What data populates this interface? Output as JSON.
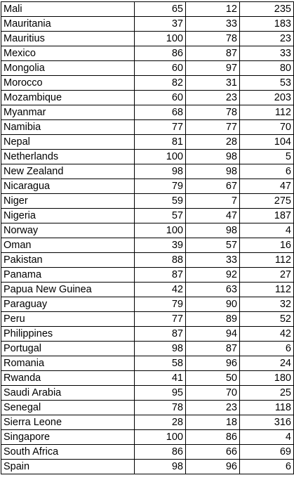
{
  "table": {
    "rows": [
      [
        "Mali",
        "65",
        "12",
        "235"
      ],
      [
        "Mauritania",
        "37",
        "33",
        "183"
      ],
      [
        "Mauritius",
        "100",
        "78",
        "23"
      ],
      [
        "Mexico",
        "86",
        "87",
        "33"
      ],
      [
        "Mongolia",
        "60",
        "97",
        "80"
      ],
      [
        "Morocco",
        "82",
        "31",
        "53"
      ],
      [
        "Mozambique",
        "60",
        "23",
        "203"
      ],
      [
        "Myanmar",
        "68",
        "78",
        "112"
      ],
      [
        "Namibia",
        "77",
        "77",
        "70"
      ],
      [
        "Nepal",
        "81",
        "28",
        "104"
      ],
      [
        "Netherlands",
        "100",
        "98",
        "5"
      ],
      [
        "New Zealand",
        "98",
        "98",
        "6"
      ],
      [
        "Nicaragua",
        "79",
        "67",
        "47"
      ],
      [
        "Niger",
        "59",
        "7",
        "275"
      ],
      [
        "Nigeria",
        "57",
        "47",
        "187"
      ],
      [
        "Norway",
        "100",
        "98",
        "4"
      ],
      [
        "Oman",
        "39",
        "57",
        "16"
      ],
      [
        "Pakistan",
        "88",
        "33",
        "112"
      ],
      [
        "Panama",
        "87",
        "92",
        "27"
      ],
      [
        "Papua New Guinea",
        "42",
        "63",
        "112"
      ],
      [
        "Paraguay",
        "79",
        "90",
        "32"
      ],
      [
        "Peru",
        "77",
        "89",
        "52"
      ],
      [
        "Philippines",
        "87",
        "94",
        "42"
      ],
      [
        "Portugal",
        "98",
        "87",
        "6"
      ],
      [
        "Romania",
        "58",
        "96",
        "24"
      ],
      [
        "Rwanda",
        "41",
        "50",
        "180"
      ],
      [
        "Saudi Arabia",
        "95",
        "70",
        "25"
      ],
      [
        "Senegal",
        "78",
        "23",
        "118"
      ],
      [
        "Sierra Leone",
        "28",
        "18",
        "316"
      ],
      [
        "Singapore",
        "100",
        "86",
        "4"
      ],
      [
        "South Africa",
        "86",
        "66",
        "69"
      ],
      [
        "Spain",
        "98",
        "96",
        "6"
      ]
    ]
  }
}
